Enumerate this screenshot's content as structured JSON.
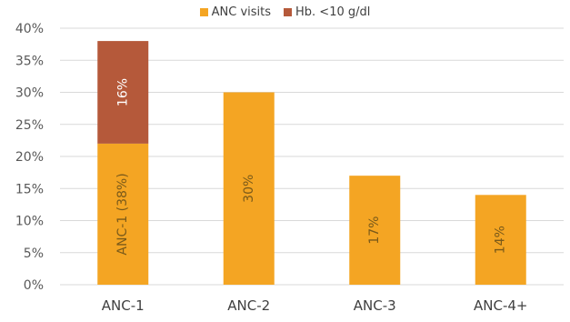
{
  "chart_data": {
    "type": "bar",
    "stacked": true,
    "title": "",
    "xlabel": "",
    "ylabel": "",
    "categories": [
      "ANC-1",
      "ANC-2",
      "ANC-3",
      "ANC-4+"
    ],
    "series": [
      {
        "name": "ANC visits",
        "color": "#F4A523",
        "values": [
          22,
          30,
          17,
          14
        ],
        "labels": [
          "ANC-1 (38%)",
          "30%",
          "17%",
          "14%"
        ]
      },
      {
        "name": "Hb. <10 g/dl",
        "color": "#B5593A",
        "values": [
          16,
          0,
          0,
          0
        ],
        "labels": [
          "16%",
          "",
          "",
          ""
        ]
      }
    ],
    "ylim": [
      0,
      40
    ],
    "yticks": [
      "0%",
      "5%",
      "10%",
      "15%",
      "20%",
      "25%",
      "30%",
      "35%",
      "40%"
    ],
    "ytick_values": [
      0,
      5,
      10,
      15,
      20,
      25,
      30,
      35,
      40
    ],
    "grid": true,
    "legend": "top"
  }
}
